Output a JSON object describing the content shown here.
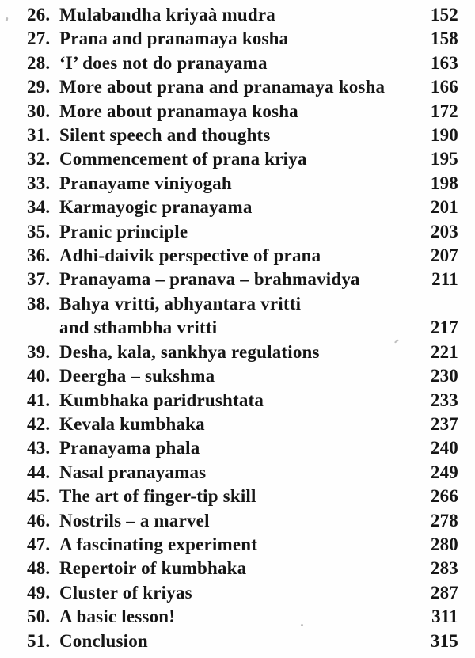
{
  "toc": {
    "entries": [
      {
        "num": "26.",
        "lines": [
          "Mulabandha kriyaà mudra"
        ],
        "page": "152"
      },
      {
        "num": "27.",
        "lines": [
          "Prana and pranamaya kosha"
        ],
        "page": "158"
      },
      {
        "num": "28.",
        "lines": [
          "‘I’ does not do pranayama"
        ],
        "page": "163"
      },
      {
        "num": "29.",
        "lines": [
          "More about prana and pranamaya kosha"
        ],
        "page": "166"
      },
      {
        "num": "30.",
        "lines": [
          "More about pranamaya kosha"
        ],
        "page": "172"
      },
      {
        "num": "31.",
        "lines": [
          "Silent speech and thoughts"
        ],
        "page": "190"
      },
      {
        "num": "32.",
        "lines": [
          "Commencement of prana kriya"
        ],
        "page": "195"
      },
      {
        "num": "33.",
        "lines": [
          "Pranayame viniyogah"
        ],
        "page": "198"
      },
      {
        "num": "34.",
        "lines": [
          "Karmayogic pranayama"
        ],
        "page": "201"
      },
      {
        "num": "35.",
        "lines": [
          "Pranic principle"
        ],
        "page": "203"
      },
      {
        "num": "36.",
        "lines": [
          "Adhi-daivik perspective of prana"
        ],
        "page": "207"
      },
      {
        "num": "37.",
        "lines": [
          "Pranayama – pranava – brahmavidya"
        ],
        "page": "211"
      },
      {
        "num": "38.",
        "lines": [
          "Bahya vritti, abhyantara vritti",
          "and sthambha vritti"
        ],
        "page": "217"
      },
      {
        "num": "39.",
        "lines": [
          "Desha, kala, sankhya regulations"
        ],
        "page": "221"
      },
      {
        "num": "40.",
        "lines": [
          "Deergha – sukshma"
        ],
        "page": "230"
      },
      {
        "num": "41.",
        "lines": [
          "Kumbhaka paridrushtata"
        ],
        "page": "233"
      },
      {
        "num": "42.",
        "lines": [
          "Kevala kumbhaka"
        ],
        "page": "237"
      },
      {
        "num": "43.",
        "lines": [
          "Pranayama phala"
        ],
        "page": "240"
      },
      {
        "num": "44.",
        "lines": [
          "Nasal pranayamas"
        ],
        "page": "249"
      },
      {
        "num": "45.",
        "lines": [
          "The art of finger-tip skill"
        ],
        "page": "266"
      },
      {
        "num": "46.",
        "lines": [
          "Nostrils – a marvel"
        ],
        "page": "278"
      },
      {
        "num": "47.",
        "lines": [
          "A fascinating experiment"
        ],
        "page": "280"
      },
      {
        "num": "48.",
        "lines": [
          "Repertoir of kumbhaka"
        ],
        "page": "283"
      },
      {
        "num": "49.",
        "lines": [
          "Cluster of kriyas"
        ],
        "page": "287"
      },
      {
        "num": "50.",
        "lines": [
          "A basic lesson!"
        ],
        "page": "311"
      },
      {
        "num": "51.",
        "lines": [
          "Conclusion"
        ],
        "page": "315"
      }
    ],
    "text_color": "#161616",
    "background_color": "#fefefe"
  }
}
